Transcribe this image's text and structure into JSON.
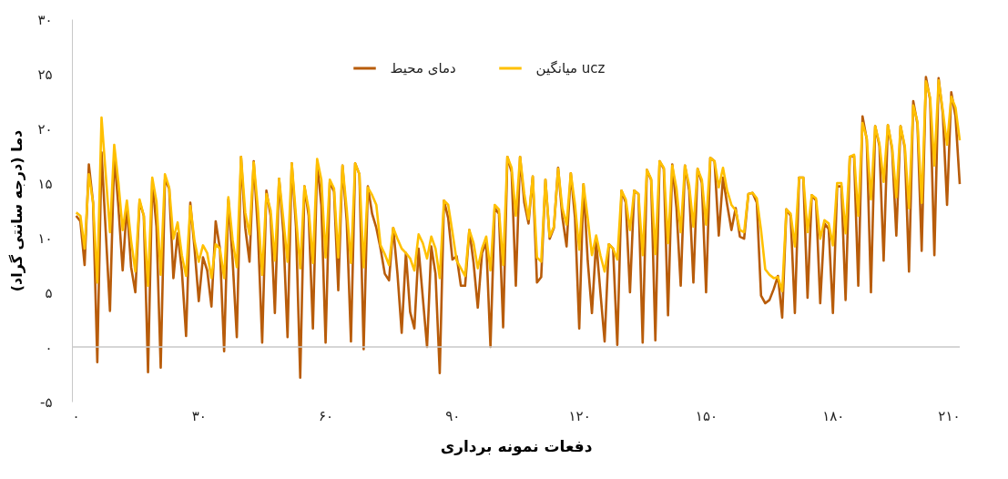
{
  "chart_data": {
    "type": "line",
    "xlabel": "دفعات نمونه برداری",
    "ylabel": "دما (درجه سانتی گراد)",
    "xlim": [
      0,
      210
    ],
    "ylim": [
      -5,
      30
    ],
    "xticks": [
      {
        "value": 0,
        "label": "۰"
      },
      {
        "value": 30,
        "label": "۳۰"
      },
      {
        "value": 60,
        "label": "۶۰"
      },
      {
        "value": 90,
        "label": "۹۰"
      },
      {
        "value": 120,
        "label": "۱۲۰"
      },
      {
        "value": 150,
        "label": "۱۵۰"
      },
      {
        "value": 180,
        "label": "۱۸۰"
      },
      {
        "value": 210,
        "label": "۲۱۰"
      }
    ],
    "yticks": [
      {
        "value": -5,
        "label": "-۵"
      },
      {
        "value": 0,
        "label": "۰"
      },
      {
        "value": 5,
        "label": "۵"
      },
      {
        "value": 10,
        "label": "۱۰"
      },
      {
        "value": 15,
        "label": "۱۵"
      },
      {
        "value": 20,
        "label": "۲۰"
      },
      {
        "value": 25,
        "label": "۲۵"
      },
      {
        "value": 30,
        "label": "۳۰"
      }
    ],
    "legend": "top",
    "ref_lines": [
      {
        "axis": "y",
        "value": 0,
        "color": "#c8c8c8"
      }
    ],
    "x": [
      1,
      2,
      3,
      4,
      5,
      6,
      7,
      9,
      10,
      11,
      12,
      13,
      14,
      15,
      16,
      17,
      18,
      19,
      20,
      21,
      22,
      23,
      24,
      25,
      26,
      27,
      28,
      29,
      30,
      31,
      32,
      33,
      34,
      35,
      36,
      37,
      38,
      39,
      40,
      41,
      42,
      43,
      44,
      45,
      46,
      47,
      48,
      49,
      50,
      51,
      52,
      53,
      54,
      55,
      56,
      57,
      58,
      59,
      60,
      61,
      62,
      63,
      64,
      65,
      66,
      67,
      68,
      69,
      70,
      71,
      72,
      73,
      74,
      75,
      76,
      77,
      78,
      79,
      80,
      81,
      82,
      83,
      84,
      85,
      86,
      87,
      88,
      89,
      90,
      91,
      92,
      93,
      94,
      95,
      96,
      97,
      98,
      99,
      100,
      101,
      102,
      103,
      104,
      105,
      106,
      107,
      108,
      109,
      110,
      111,
      112,
      113,
      114,
      115,
      116,
      117,
      118,
      119,
      120,
      121,
      122,
      123,
      124,
      125,
      126,
      127,
      128,
      129,
      130,
      131,
      132,
      133,
      134,
      135,
      136,
      137,
      138,
      139,
      140,
      141,
      142,
      143,
      144,
      145,
      146,
      147,
      148,
      149,
      150,
      151,
      152,
      153,
      154,
      155,
      156,
      157,
      158,
      159,
      160,
      161,
      162,
      163,
      164,
      165,
      166,
      167,
      168,
      169,
      170,
      171,
      172,
      173,
      174,
      175,
      176,
      177,
      178,
      179,
      180,
      181,
      182,
      183,
      184,
      185,
      186,
      187,
      188,
      189,
      190,
      191,
      192,
      193,
      194,
      195,
      196,
      197,
      198,
      199,
      200,
      201,
      202,
      203,
      204,
      205,
      206,
      207,
      208,
      209,
      210
    ],
    "series": [
      {
        "name": "دمای محیط",
        "color": "#b85c0a",
        "values": [
          12.0,
          11.5,
          7.5,
          16.7,
          13.2,
          -1.4,
          17.8,
          3.3,
          17.5,
          12.8,
          7.0,
          13.0,
          7.3,
          5.0,
          13.3,
          12.0,
          -2.3,
          15.2,
          11.0,
          -1.9,
          15.3,
          14.5,
          6.3,
          10.4,
          7.0,
          1.0,
          13.2,
          9.0,
          4.2,
          8.2,
          7.0,
          3.7,
          11.5,
          9.0,
          -0.4,
          13.5,
          8.0,
          0.9,
          17.4,
          10.9,
          7.8,
          17.0,
          10.5,
          0.4,
          14.3,
          12.0,
          3.1,
          15.4,
          10.5,
          0.9,
          16.8,
          11.0,
          -2.8,
          14.7,
          12.0,
          1.7,
          16.8,
          13.0,
          0.4,
          15.1,
          14.2,
          5.2,
          16.6,
          11.5,
          0.5,
          16.8,
          15.8,
          -0.2,
          14.7,
          12.2,
          10.9,
          9.0,
          6.7,
          6.1,
          10.9,
          6.7,
          1.3,
          8.6,
          3.2,
          1.7,
          9.0,
          4.5,
          0.0,
          9.2,
          6.7,
          -2.4,
          13.4,
          11.8,
          8.0,
          8.3,
          5.6,
          5.6,
          10.7,
          7.7,
          3.6,
          8.6,
          9.5,
          0.0,
          12.7,
          12.2,
          1.8,
          17.4,
          16.0,
          5.6,
          17.4,
          13.2,
          11.3,
          15.6,
          5.9,
          6.4,
          15.3,
          9.9,
          10.9,
          16.4,
          11.9,
          9.2,
          15.9,
          11.8,
          1.7,
          14.9,
          7.9,
          3.1,
          9.7,
          5.0,
          0.5,
          9.4,
          9.0,
          0.2,
          14.3,
          13.2,
          5.0,
          14.3,
          14.0,
          0.4,
          16.2,
          15.3,
          0.6,
          17.0,
          16.3,
          2.9,
          16.7,
          12.7,
          5.6,
          16.6,
          14.3,
          5.9,
          16.3,
          15.0,
          5.0,
          17.3,
          17.0,
          10.2,
          15.5,
          13.0,
          10.7,
          12.7,
          10.1,
          9.9,
          14.0,
          14.1,
          13.2,
          4.7,
          4.0,
          4.3,
          5.3,
          6.5,
          2.7,
          12.6,
          12.0,
          3.1,
          15.5,
          15.5,
          4.5,
          13.9,
          13.4,
          4.0,
          11.3,
          10.8,
          3.1,
          14.7,
          14.7,
          4.3,
          17.4,
          17.5,
          5.6,
          21.1,
          19.0,
          5.0,
          20.2,
          18.4,
          7.9,
          20.3,
          18.1,
          10.2,
          20.2,
          18.2,
          6.9,
          22.5,
          20.4,
          8.8,
          24.7,
          22.6,
          8.4,
          24.6,
          21.3,
          13.0,
          23.3,
          21.1,
          14.9
        ]
      },
      {
        "name": "میانگین ucz",
        "color": "#ffc000",
        "values": [
          12.3,
          12.0,
          9.0,
          15.8,
          13.2,
          5.9,
          21.0,
          10.5,
          18.5,
          15.0,
          10.7,
          13.4,
          9.7,
          6.9,
          13.5,
          12.0,
          5.6,
          15.5,
          13.3,
          6.6,
          15.8,
          14.6,
          9.9,
          11.4,
          8.4,
          6.5,
          12.9,
          9.7,
          7.8,
          9.3,
          8.6,
          6.3,
          9.4,
          9.0,
          6.3,
          13.7,
          9.8,
          7.3,
          17.4,
          12.3,
          10.3,
          16.9,
          12.6,
          6.6,
          14.0,
          12.5,
          7.9,
          15.4,
          11.7,
          7.8,
          16.8,
          12.0,
          7.2,
          14.7,
          12.6,
          7.7,
          17.2,
          15.3,
          8.2,
          15.3,
          14.5,
          8.2,
          16.6,
          12.6,
          7.7,
          16.8,
          15.8,
          7.3,
          14.6,
          13.9,
          13.0,
          9.3,
          8.5,
          7.5,
          10.9,
          9.9,
          9.0,
          8.6,
          8.1,
          7.0,
          10.3,
          9.5,
          8.1,
          10.1,
          9.0,
          6.3,
          13.4,
          13.0,
          10.5,
          7.9,
          7.2,
          6.5,
          10.7,
          9.5,
          7.2,
          9.0,
          10.1,
          7.0,
          13.0,
          12.6,
          7.5,
          17.4,
          16.4,
          12.0,
          17.4,
          14.0,
          11.7,
          15.6,
          8.2,
          7.8,
          15.3,
          10.1,
          11.0,
          16.3,
          12.7,
          11.2,
          15.9,
          13.0,
          8.9,
          14.9,
          11.8,
          8.4,
          10.2,
          8.4,
          6.9,
          9.4,
          9.0,
          8.0,
          14.3,
          13.5,
          10.7,
          14.3,
          14.0,
          8.4,
          16.2,
          15.4,
          8.5,
          17.0,
          16.4,
          9.5,
          16.6,
          14.5,
          10.5,
          16.6,
          14.8,
          11.0,
          16.3,
          15.3,
          11.2,
          17.3,
          17.0,
          14.6,
          16.4,
          14.3,
          13.0,
          12.5,
          10.7,
          10.5,
          14.0,
          14.1,
          13.6,
          10.7,
          7.1,
          6.6,
          6.3,
          6.4,
          5.1,
          12.6,
          12.2,
          9.2,
          15.5,
          15.5,
          10.5,
          13.9,
          13.6,
          9.9,
          11.6,
          11.3,
          9.3,
          15.0,
          15.0,
          10.4,
          17.4,
          17.6,
          12.0,
          20.5,
          19.1,
          13.5,
          20.2,
          18.6,
          15.1,
          20.3,
          18.3,
          13.7,
          20.2,
          18.4,
          12.7,
          22.1,
          20.6,
          13.2,
          24.3,
          22.8,
          16.6,
          24.4,
          21.6,
          18.5,
          22.9,
          21.9,
          18.9
        ]
      }
    ]
  }
}
